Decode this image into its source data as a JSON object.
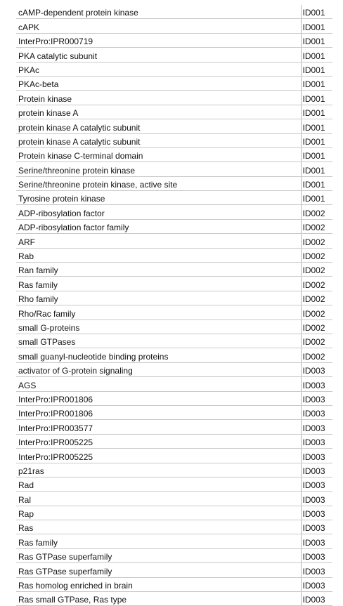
{
  "rows": [
    {
      "term": "cAMP-dependent protein kinase",
      "id": "ID001"
    },
    {
      "term": "cAPK",
      "id": "ID001"
    },
    {
      "term": "InterPro:IPR000719",
      "id": "ID001"
    },
    {
      "term": "PKA catalytic subunit",
      "id": "ID001"
    },
    {
      "term": "PKAc",
      "id": "ID001"
    },
    {
      "term": "PKAc-beta",
      "id": "ID001"
    },
    {
      "term": "Protein kinase",
      "id": "ID001"
    },
    {
      "term": "protein kinase A",
      "id": "ID001"
    },
    {
      "term": "protein kinase A catalytic subunit",
      "id": "ID001"
    },
    {
      "term": "protein kinase A catalytic subunit",
      "id": "ID001"
    },
    {
      "term": "Protein kinase C-terminal domain",
      "id": "ID001"
    },
    {
      "term": "Serine/threonine protein kinase",
      "id": "ID001"
    },
    {
      "term": "Serine/threonine protein kinase, active site",
      "id": "ID001"
    },
    {
      "term": "Tyrosine protein kinase",
      "id": "ID001"
    },
    {
      "term": "ADP-ribosylation factor",
      "id": "ID002"
    },
    {
      "term": "ADP-ribosylation factor family",
      "id": "ID002"
    },
    {
      "term": "ARF",
      "id": "ID002"
    },
    {
      "term": "Rab",
      "id": "ID002"
    },
    {
      "term": "Ran family",
      "id": "ID002"
    },
    {
      "term": "Ras family",
      "id": "ID002"
    },
    {
      "term": "Rho family",
      "id": "ID002"
    },
    {
      "term": "Rho/Rac family",
      "id": "ID002"
    },
    {
      "term": "small G-proteins",
      "id": "ID002"
    },
    {
      "term": "small GTPases",
      "id": "ID002"
    },
    {
      "term": "small guanyl-nucleotide binding proteins",
      "id": "ID002"
    },
    {
      "term": "activator of G-protein signaling",
      "id": "ID003"
    },
    {
      "term": "AGS",
      "id": "ID003"
    },
    {
      "term": "InterPro:IPR001806",
      "id": "ID003"
    },
    {
      "term": "InterPro:IPR001806",
      "id": "ID003"
    },
    {
      "term": "InterPro:IPR003577",
      "id": "ID003"
    },
    {
      "term": "InterPro:IPR005225",
      "id": "ID003"
    },
    {
      "term": "InterPro:IPR005225",
      "id": "ID003"
    },
    {
      "term": "p21ras",
      "id": "ID003"
    },
    {
      "term": "Rad",
      "id": "ID003"
    },
    {
      "term": "Ral",
      "id": "ID003"
    },
    {
      "term": "Rap",
      "id": "ID003"
    },
    {
      "term": "Ras",
      "id": "ID003"
    },
    {
      "term": "Ras family",
      "id": "ID003"
    },
    {
      "term": "Ras GTPase superfamily",
      "id": "ID003"
    },
    {
      "term": "Ras GTPase superfamily",
      "id": "ID003"
    },
    {
      "term": "Ras homolog enriched in brain",
      "id": "ID003"
    },
    {
      "term": "Ras small GTPase, Ras type",
      "id": "ID003"
    }
  ]
}
